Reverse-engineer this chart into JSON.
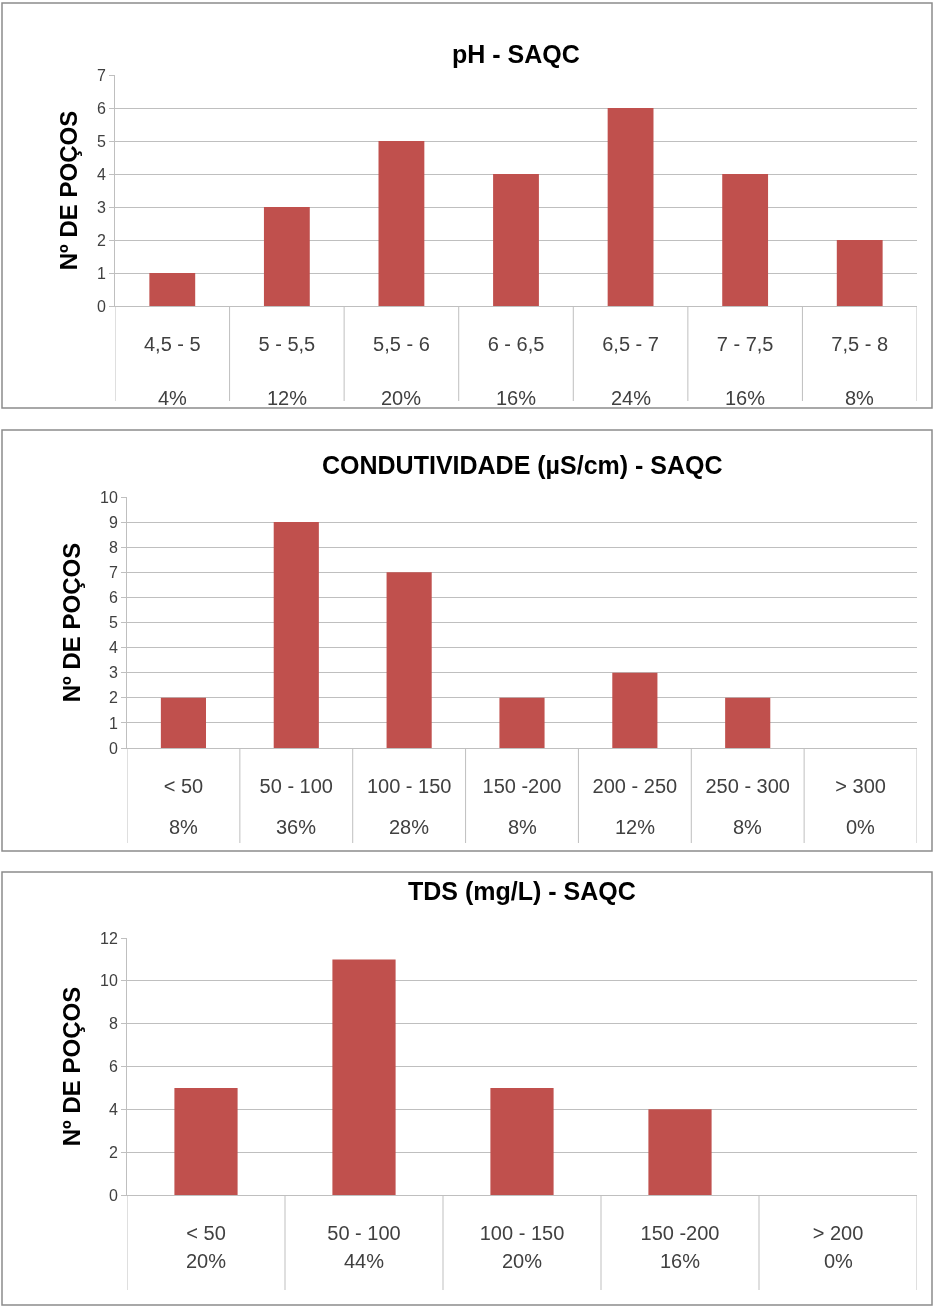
{
  "chart_data": [
    {
      "type": "bar",
      "title": "pH - SAQC",
      "ylabel": "Nº DE POÇOS",
      "categories": [
        "4,5 - 5",
        "5 - 5,5",
        "5,5 - 6",
        "6 - 6,5",
        "6,5 - 7",
        "7 - 7,5",
        "7,5 - 8"
      ],
      "values": [
        1,
        3,
        5,
        4,
        6,
        4,
        2
      ],
      "annotations": [
        "4%",
        "12%",
        "20%",
        "16%",
        "24%",
        "16%",
        "8%"
      ],
      "color": "#c0504d",
      "ylim": [
        0,
        7
      ],
      "yticks": [
        0,
        1,
        2,
        3,
        4,
        5,
        6,
        7
      ],
      "grid": "y"
    },
    {
      "type": "bar",
      "title": "CONDUTIVIDADE (µS/cm) - SAQC",
      "ylabel": "Nº DE POÇOS",
      "categories": [
        "< 50",
        "50 - 100",
        "100 - 150",
        "150 -200",
        "200 - 250",
        "250 - 300",
        "> 300"
      ],
      "values": [
        2,
        9,
        7,
        2,
        3,
        2,
        0
      ],
      "annotations": [
        "8%",
        "36%",
        "28%",
        "8%",
        "12%",
        "8%",
        "0%"
      ],
      "color": "#c0504d",
      "ylim": [
        0,
        10
      ],
      "yticks": [
        0,
        1,
        2,
        3,
        4,
        5,
        6,
        7,
        8,
        9,
        10
      ],
      "grid": "y"
    },
    {
      "type": "bar",
      "title": "TDS (mg/L) - SAQC",
      "ylabel": "Nº DE POÇOS",
      "categories": [
        "< 50",
        "50 - 100",
        "100 - 150",
        "150 -200",
        "> 200"
      ],
      "values": [
        5,
        11,
        5,
        4,
        0
      ],
      "annotations": [
        "20%",
        "44%",
        "20%",
        "16%",
        "0%"
      ],
      "color": "#c0504d",
      "ylim": [
        0,
        12
      ],
      "yticks": [
        0,
        2,
        4,
        6,
        8,
        10,
        12
      ],
      "grid": "y"
    }
  ]
}
